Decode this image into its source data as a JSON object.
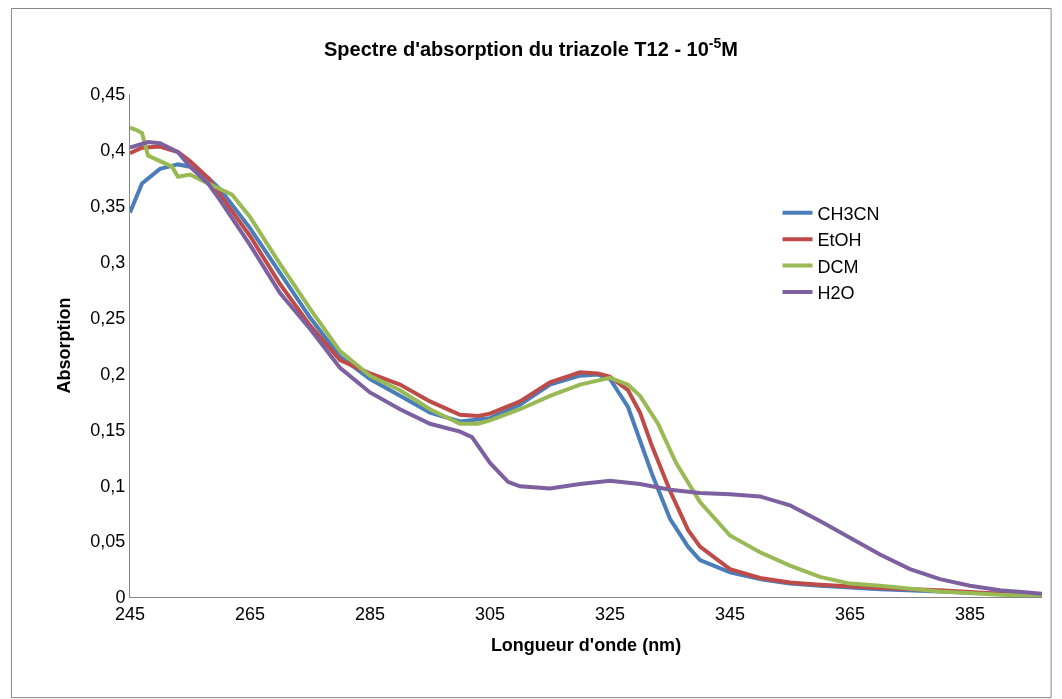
{
  "chart_data": {
    "type": "line",
    "title": "Spectre d'absorption du triazole T12 - 10$^{-5}$M",
    "xlabel": "Longueur d'onde (nm)",
    "ylabel": "Absorption",
    "xlim": [
      245,
      397
    ],
    "xticks": [
      245,
      265,
      285,
      305,
      325,
      345,
      365,
      385
    ],
    "ylim": [
      0,
      0.45
    ],
    "yticks": [
      0,
      {
        "value": 0.05,
        "label": "0,05"
      },
      {
        "value": 0.1,
        "label": "0,1"
      },
      {
        "value": 0.15,
        "label": "0,15"
      },
      {
        "value": 0.2,
        "label": "0,2"
      },
      {
        "value": 0.25,
        "label": "0,25"
      },
      {
        "value": 0.3,
        "label": "0,3"
      },
      {
        "value": 0.35,
        "label": "0,35"
      },
      {
        "value": 0.4,
        "label": "0,4"
      },
      {
        "value": 0.45,
        "label": "0,45"
      }
    ],
    "legend": "right",
    "marker": "none",
    "line_style": "solid",
    "series": [
      {
        "name": "CH3CN",
        "color": "#4a7ebb",
        "x": [
          245,
          247,
          250,
          253,
          255,
          258,
          260,
          265,
          270,
          275,
          280,
          285,
          290,
          295,
          300,
          305,
          310,
          315,
          320,
          323,
          325,
          328,
          330,
          332,
          335,
          338,
          340,
          345,
          350,
          355,
          360,
          370,
          380,
          390,
          397
        ],
        "values": [
          0.344,
          0.37,
          0.383,
          0.387,
          0.385,
          0.375,
          0.365,
          0.33,
          0.29,
          0.25,
          0.215,
          0.195,
          0.18,
          0.165,
          0.157,
          0.16,
          0.172,
          0.19,
          0.198,
          0.199,
          0.195,
          0.17,
          0.14,
          0.11,
          0.07,
          0.045,
          0.033,
          0.022,
          0.016,
          0.012,
          0.01,
          0.007,
          0.005,
          0.003,
          0.002
        ]
      },
      {
        "name": "EtOH",
        "color": "#be4b48",
        "x": [
          245,
          247,
          250,
          253,
          255,
          258,
          260,
          265,
          270,
          275,
          280,
          285,
          290,
          295,
          300,
          303,
          305,
          310,
          315,
          320,
          323,
          325,
          328,
          330,
          332,
          335,
          338,
          340,
          345,
          350,
          355,
          360,
          370,
          380,
          390,
          397
        ],
        "values": [
          0.397,
          0.402,
          0.403,
          0.398,
          0.39,
          0.375,
          0.36,
          0.323,
          0.28,
          0.243,
          0.212,
          0.2,
          0.19,
          0.175,
          0.163,
          0.162,
          0.164,
          0.175,
          0.192,
          0.201,
          0.2,
          0.197,
          0.185,
          0.165,
          0.135,
          0.095,
          0.06,
          0.045,
          0.025,
          0.017,
          0.013,
          0.011,
          0.008,
          0.006,
          0.003,
          0.002
        ]
      },
      {
        "name": "DCM",
        "color": "#98b954",
        "x": [
          245,
          246,
          247,
          248,
          250,
          252,
          253,
          255,
          258,
          260,
          262,
          265,
          270,
          275,
          280,
          285,
          290,
          295,
          300,
          303,
          305,
          310,
          315,
          320,
          325,
          328,
          330,
          333,
          336,
          340,
          345,
          350,
          355,
          360,
          365,
          370,
          380,
          390,
          397
        ],
        "values": [
          0.42,
          0.418,
          0.415,
          0.395,
          0.39,
          0.385,
          0.376,
          0.378,
          0.37,
          0.365,
          0.36,
          0.34,
          0.298,
          0.258,
          0.22,
          0.198,
          0.185,
          0.168,
          0.155,
          0.155,
          0.158,
          0.168,
          0.18,
          0.19,
          0.196,
          0.19,
          0.18,
          0.155,
          0.12,
          0.085,
          0.055,
          0.04,
          0.028,
          0.018,
          0.012,
          0.01,
          0.005,
          0.002,
          0.001
        ]
      },
      {
        "name": "H2O",
        "color": "#7d60a0",
        "x": [
          245,
          248,
          250,
          253,
          255,
          258,
          260,
          265,
          270,
          275,
          280,
          285,
          290,
          295,
          300,
          302,
          305,
          308,
          310,
          315,
          320,
          325,
          330,
          335,
          340,
          345,
          350,
          355,
          360,
          365,
          370,
          375,
          380,
          385,
          390,
          397
        ],
        "values": [
          0.402,
          0.407,
          0.406,
          0.398,
          0.385,
          0.37,
          0.355,
          0.315,
          0.272,
          0.24,
          0.205,
          0.183,
          0.168,
          0.155,
          0.148,
          0.143,
          0.12,
          0.103,
          0.099,
          0.097,
          0.101,
          0.104,
          0.101,
          0.096,
          0.093,
          0.092,
          0.09,
          0.082,
          0.068,
          0.053,
          0.038,
          0.025,
          0.016,
          0.01,
          0.006,
          0.003
        ]
      }
    ]
  }
}
